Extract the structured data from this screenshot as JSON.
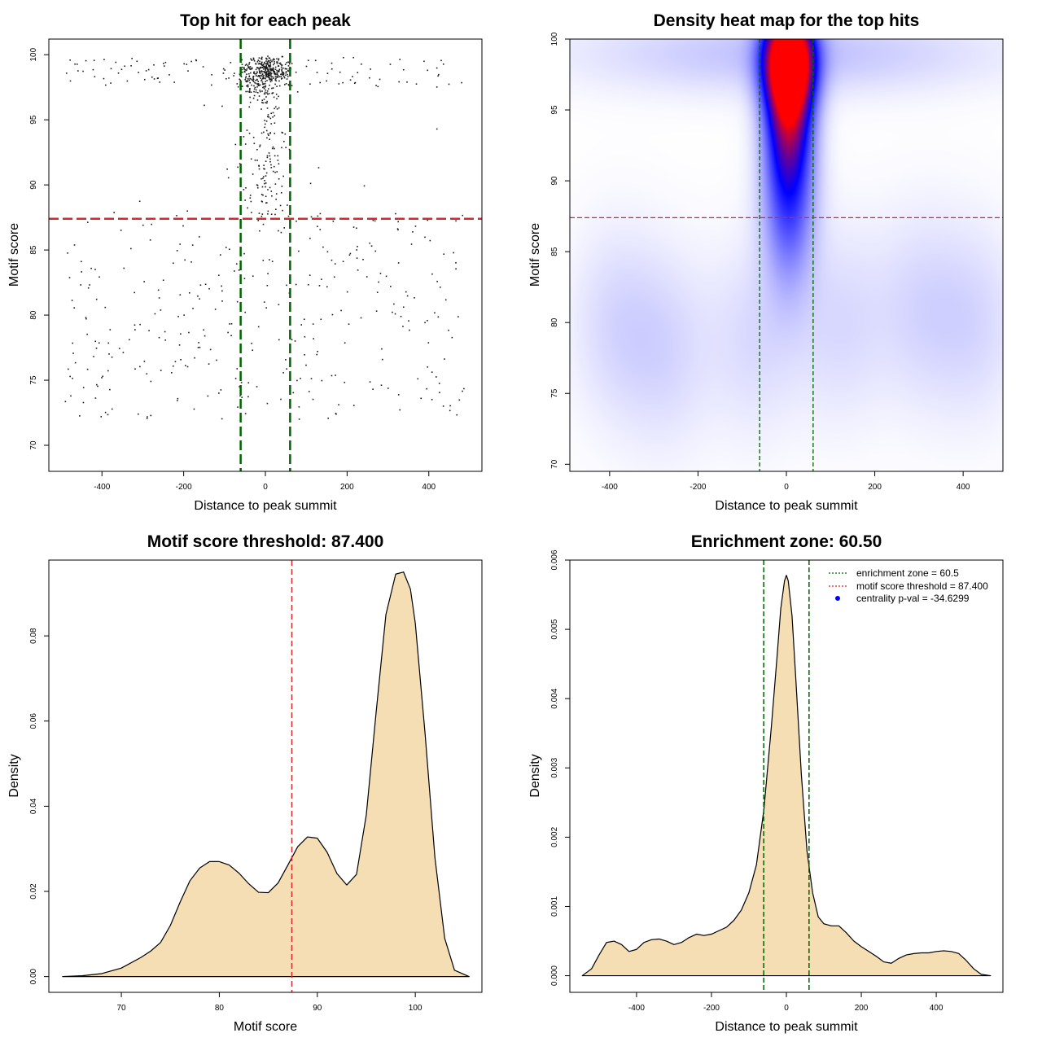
{
  "chart_data": [
    {
      "type": "scatter",
      "title": "Top hit for each peak",
      "xlabel": "Distance to peak summit",
      "ylabel": "Motif score",
      "xlim": [
        -530,
        530
      ],
      "ylim": [
        68,
        101.2
      ],
      "xticks": [
        -400,
        -200,
        0,
        200,
        400
      ],
      "yticks": [
        70,
        75,
        80,
        85,
        90,
        95,
        100
      ],
      "enrichment_zone": [
        -60.5,
        60.5
      ],
      "threshold": 87.4,
      "colors": {
        "points": "#1a1a1a",
        "zone": "#006400",
        "threshold": "#d62728"
      },
      "point_generation": {
        "seed": 42,
        "n_core": 430,
        "n_mid": 130,
        "n_low": 330,
        "n_top_wide": 110
      }
    },
    {
      "type": "heatmap",
      "title": "Density heat map for the top hits",
      "xlabel": "Distance to peak summit",
      "ylabel": "Motif score",
      "xlim": [
        -490,
        490
      ],
      "ylim": [
        69.5,
        100
      ],
      "xticks": [
        -400,
        -200,
        0,
        200,
        400
      ],
      "yticks": [
        70,
        75,
        80,
        85,
        90,
        95,
        100
      ],
      "enrichment_zone": [
        -60.5,
        60.5
      ],
      "threshold": 87.4,
      "colors": {
        "low": "#ffffff",
        "mid": "#0000ff",
        "high": "#ff0000",
        "zone": "#006400",
        "threshold": "#d62728"
      }
    },
    {
      "type": "area",
      "title": "Motif score threshold: 87.400",
      "xlabel": "Motif score",
      "ylabel": "Density",
      "xlim": [
        62.6,
        106.8
      ],
      "ylim": [
        -0.0037,
        0.0978
      ],
      "xticks": [
        70,
        80,
        90,
        100
      ],
      "yticks": [
        0.0,
        0.02,
        0.04,
        0.06,
        0.08
      ],
      "ytick_labels": [
        "0.00",
        "0.02",
        "0.04",
        "0.06",
        "0.08"
      ],
      "threshold": 87.4,
      "x": [
        64,
        66,
        68,
        70,
        72,
        73,
        74,
        75,
        76,
        77,
        78,
        79,
        80,
        81,
        82,
        83,
        84,
        85,
        86,
        87,
        88,
        89,
        90,
        91,
        92,
        93,
        94,
        95,
        96,
        97,
        98,
        98.8,
        99.5,
        100,
        101,
        102,
        103,
        104,
        105.5
      ],
      "y": [
        0.0,
        0.0002,
        0.0007,
        0.002,
        0.0045,
        0.006,
        0.008,
        0.012,
        0.0175,
        0.0225,
        0.0255,
        0.027,
        0.027,
        0.0262,
        0.0243,
        0.0218,
        0.0198,
        0.0197,
        0.022,
        0.0262,
        0.0305,
        0.0328,
        0.0325,
        0.0292,
        0.0242,
        0.0215,
        0.024,
        0.038,
        0.062,
        0.085,
        0.0945,
        0.095,
        0.091,
        0.083,
        0.057,
        0.028,
        0.009,
        0.0015,
        0.0
      ],
      "colors": {
        "fill": "#f5deb3",
        "line": "#000000",
        "threshold": "#d62728"
      }
    },
    {
      "type": "area",
      "title": "Enrichment zone: 60.50",
      "xlabel": "Distance to peak summit",
      "ylabel": "Density",
      "xlim": [
        -578,
        578
      ],
      "ylim": [
        -0.00024,
        0.006
      ],
      "xticks": [
        -400,
        -200,
        0,
        200,
        400
      ],
      "yticks": [
        0.0,
        0.001,
        0.002,
        0.003,
        0.004,
        0.005,
        0.006
      ],
      "ytick_labels": [
        "0.000",
        "0.001",
        "0.002",
        "0.003",
        "0.004",
        "0.005",
        "0.006"
      ],
      "enrichment_zone": [
        -60.5,
        60.5
      ],
      "threshold": 87.4,
      "x": [
        -545,
        -520,
        -500,
        -480,
        -460,
        -440,
        -420,
        -400,
        -380,
        -360,
        -340,
        -320,
        -300,
        -280,
        -260,
        -240,
        -220,
        -200,
        -180,
        -160,
        -140,
        -120,
        -100,
        -80,
        -60,
        -40,
        -25,
        -15,
        -5,
        0,
        5,
        15,
        25,
        40,
        55,
        70,
        85,
        100,
        120,
        140,
        160,
        180,
        200,
        220,
        240,
        260,
        280,
        300,
        320,
        340,
        360,
        380,
        400,
        420,
        440,
        460,
        480,
        500,
        520,
        545
      ],
      "y": [
        0.0,
        0.0001,
        0.0003,
        0.00048,
        0.0005,
        0.00045,
        0.00035,
        0.00038,
        0.00048,
        0.00052,
        0.00053,
        0.0005,
        0.00045,
        0.00048,
        0.00055,
        0.0006,
        0.00058,
        0.0006,
        0.00065,
        0.0007,
        0.0008,
        0.00095,
        0.0012,
        0.0016,
        0.0024,
        0.0036,
        0.0046,
        0.0053,
        0.0057,
        0.00578,
        0.0057,
        0.0052,
        0.0043,
        0.0029,
        0.0018,
        0.0012,
        0.00085,
        0.00075,
        0.00072,
        0.00072,
        0.00062,
        0.0005,
        0.00042,
        0.00035,
        0.00028,
        0.0002,
        0.00018,
        0.00025,
        0.0003,
        0.00032,
        0.00033,
        0.00033,
        0.00035,
        0.00036,
        0.00035,
        0.00032,
        0.00022,
        0.0001,
        2e-05,
        0.0
      ],
      "legend": [
        {
          "label": "enrichment zone = 60.5",
          "symbol": "dotted-line",
          "color": "#006400"
        },
        {
          "label": "motif score threshold = 87.400",
          "symbol": "dotted-line",
          "color": "#d62728"
        },
        {
          "label": "centrality p-val = -34.6299",
          "symbol": "point",
          "color": "#0000ff"
        }
      ],
      "colors": {
        "fill": "#f5deb3",
        "line": "#000000",
        "zone": "#006400"
      }
    }
  ]
}
